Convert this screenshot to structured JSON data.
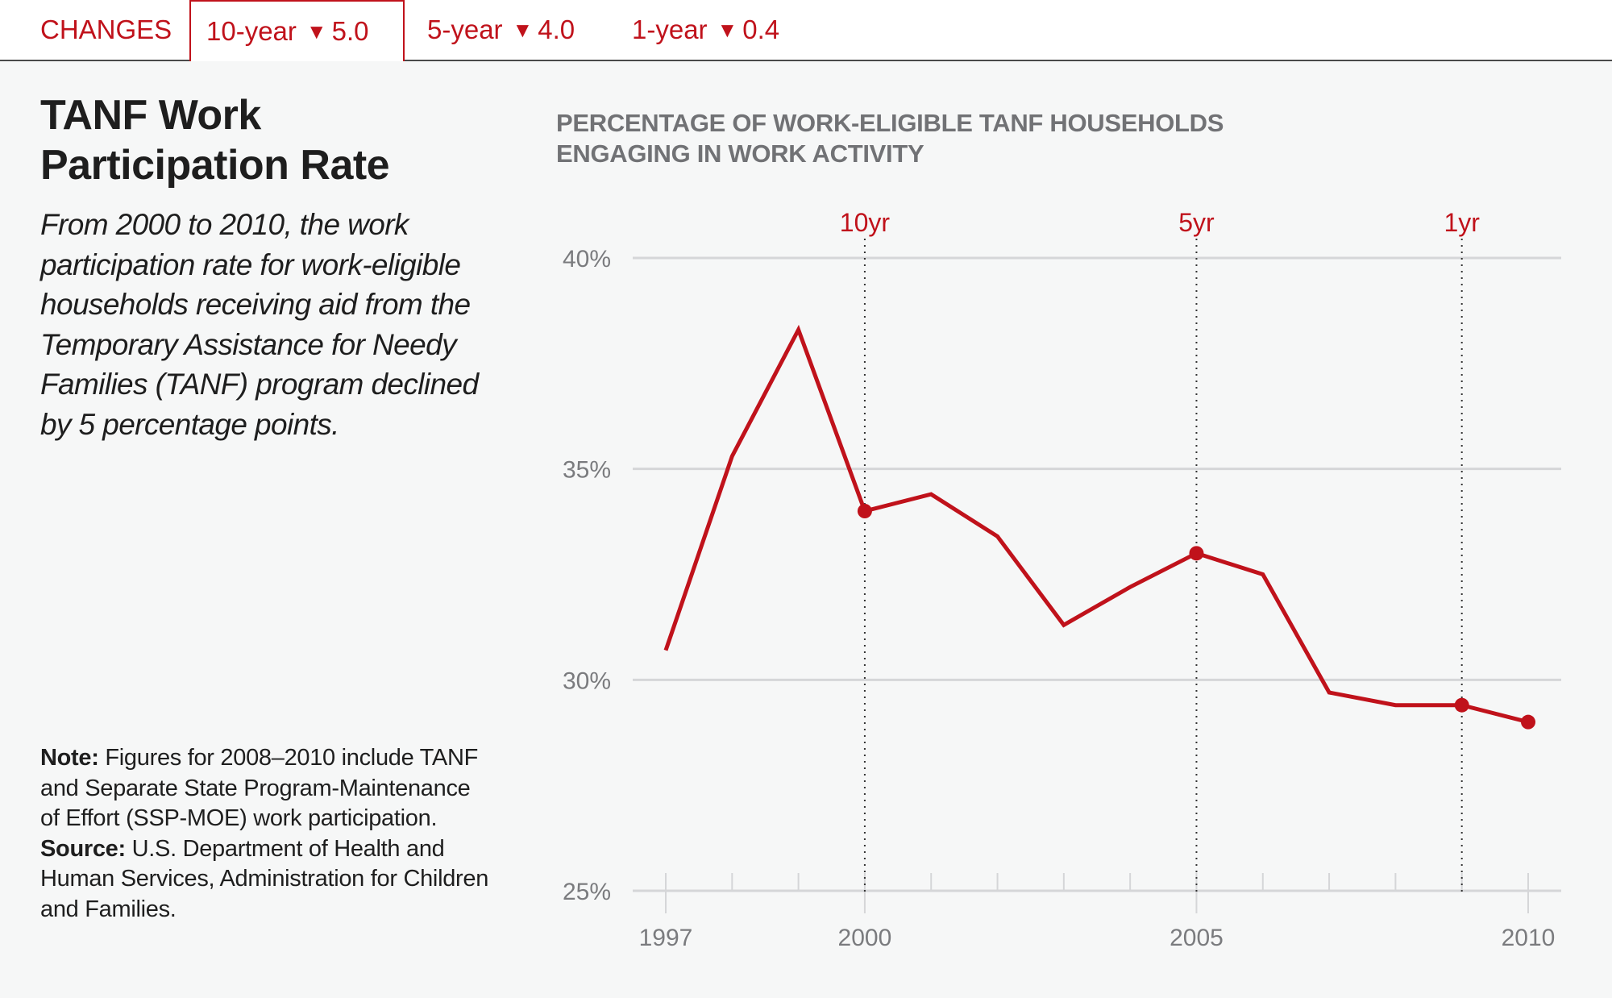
{
  "header": {
    "changes_label": "CHANGES",
    "tabs": [
      {
        "label": "10-year",
        "arrow": "▼",
        "value": "5.0",
        "active": true
      },
      {
        "label": "5-year",
        "arrow": "▼",
        "value": "4.0",
        "active": false
      },
      {
        "label": "1-year",
        "arrow": "▼",
        "value": "0.4",
        "active": false
      }
    ]
  },
  "sidebar": {
    "title_line1": "TANF Work",
    "title_line2": "Participation Rate",
    "description": "From 2000 to 2010, the work participation rate for work-eligible households receiving aid from the Temporary Assistance for Needy Families (TANF) program declined by 5 percentage points.",
    "note_label": "Note:",
    "note_text": " Figures for 2008–2010 include TANF and Separate State Program-Maintenance of Effort (SSP-MOE) work participation.",
    "source_label": "Source:",
    "source_text": " U.S. Department of Health and Human Services, Administration for Children and Families."
  },
  "colors": {
    "accent": "#c0121b",
    "grid": "#d5d6d8",
    "axis_text": "#7a7b7e",
    "background": "#f6f7f7"
  },
  "chart_data": {
    "type": "line",
    "title": "PERCENTAGE OF WORK-ELIGIBLE TANF HOUSEHOLDS ENGAGING IN WORK ACTIVITY",
    "xlabel": "",
    "ylabel": "",
    "x": [
      1997,
      1998,
      1999,
      2000,
      2001,
      2002,
      2003,
      2004,
      2005,
      2006,
      2007,
      2008,
      2009,
      2010
    ],
    "series": [
      {
        "name": "Work participation rate (%)",
        "values": [
          30.7,
          35.3,
          38.3,
          34.0,
          34.4,
          33.4,
          31.3,
          32.2,
          33.0,
          32.5,
          29.7,
          29.4,
          29.4,
          29.0
        ]
      }
    ],
    "xlim": [
      1997,
      2010
    ],
    "ylim": [
      25,
      40
    ],
    "yticks": [
      40,
      35,
      30,
      25
    ],
    "ytick_labels": [
      "40%",
      "35%",
      "30%",
      "25%"
    ],
    "xtick_labels": [
      {
        "year": 1997,
        "label": "1997"
      },
      {
        "year": 2000,
        "label": "2000"
      },
      {
        "year": 2005,
        "label": "2005"
      },
      {
        "year": 2010,
        "label": "2010"
      }
    ],
    "highlighted_points": [
      2000,
      2005,
      2009,
      2010
    ],
    "annotations": [
      {
        "year": 2000,
        "label": "10yr"
      },
      {
        "year": 2005,
        "label": "5yr"
      },
      {
        "year": 2009,
        "label": "1yr"
      }
    ],
    "grid": true,
    "legend": "none"
  }
}
